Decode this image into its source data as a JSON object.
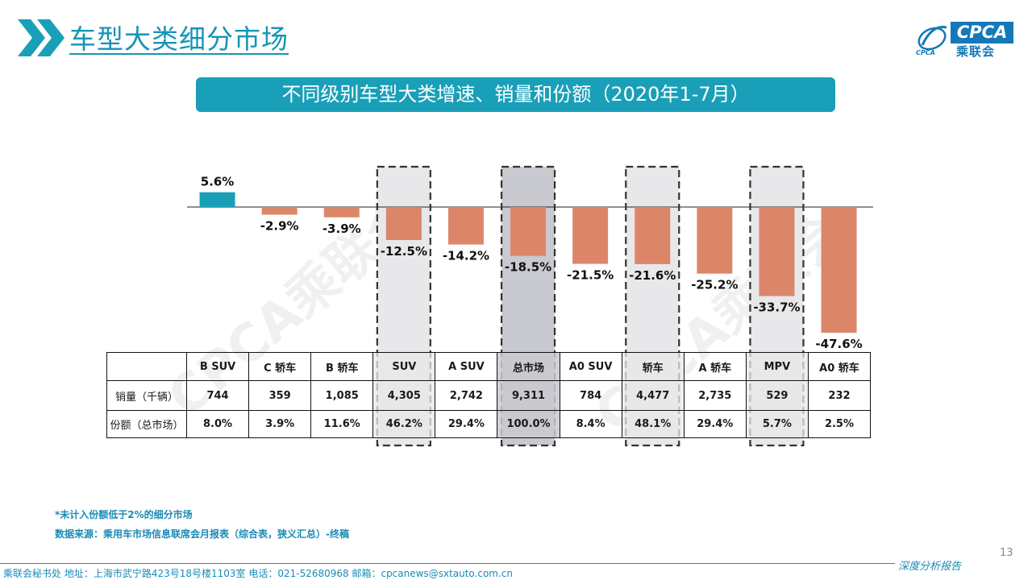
{
  "header": {
    "title": "车型大类细分市场",
    "logo_text": "CPCA",
    "logo_cn": "乘联会",
    "logo_sub": "CPCA"
  },
  "banner": {
    "text": "不同级别车型大类增速、销量和份额（2020年1-7月）"
  },
  "watermark": "CPCA乘联会",
  "colors": {
    "positive": "#1a9fb8",
    "negative": "#dc8669",
    "accent": "#1a8bb5",
    "highlight": "#e8e8ea",
    "highlight_total": "#c9c9d0"
  },
  "chart_data": {
    "type": "bar",
    "title": "不同级别车型大类增速、销量和份额（2020年1-7月）",
    "categories": [
      "B SUV",
      "C 轿车",
      "B 轿车",
      "SUV",
      "A SUV",
      "总市场",
      "A0 SUV",
      "轿车",
      "A 轿车",
      "MPV",
      "A0 轿车"
    ],
    "values": [
      5.6,
      -2.9,
      -3.9,
      -12.5,
      -14.2,
      -18.5,
      -21.5,
      -21.6,
      -25.2,
      -33.7,
      -47.6
    ],
    "value_labels": [
      "5.6%",
      "-2.9%",
      "-3.9%",
      "-12.5%",
      "-14.2%",
      "-18.5%",
      "-21.5%",
      "-21.6%",
      "-25.2%",
      "-33.7%",
      "-47.6%"
    ],
    "unit": "%",
    "ylim": [
      -50,
      6
    ],
    "grid": false,
    "highlighted": [
      "SUV",
      "总市场",
      "轿车",
      "MPV"
    ]
  },
  "table": {
    "header": [
      "",
      "B SUV",
      "C 轿车",
      "B 轿车",
      "SUV",
      "A SUV",
      "总市场",
      "A0 SUV",
      "轿车",
      "A 轿车",
      "MPV",
      "A0 轿车"
    ],
    "rows": [
      {
        "label": "销量（千辆）",
        "values": [
          "744",
          "359",
          "1,085",
          "4,305",
          "2,742",
          "9,311",
          "784",
          "4,477",
          "2,735",
          "529",
          "232"
        ]
      },
      {
        "label": "份额（总市场）",
        "values": [
          "8.0%",
          "3.9%",
          "11.6%",
          "46.2%",
          "29.4%",
          "100.0%",
          "8.4%",
          "48.1%",
          "29.4%",
          "5.7%",
          "2.5%"
        ]
      }
    ]
  },
  "notes": {
    "note1": "*未计入份额低于2%的细分市场",
    "note2": "数据来源：乘用车市场信息联席会月报表（综合表，狭义汇总）-终稿"
  },
  "footer": {
    "address": "乘联会秘书处   地址：上海市武宁路423号18号楼1103室   电话：021-52680968   邮箱：cpcanews@sxtauto.com.cn",
    "right": "深度分析报告",
    "page": "13"
  }
}
